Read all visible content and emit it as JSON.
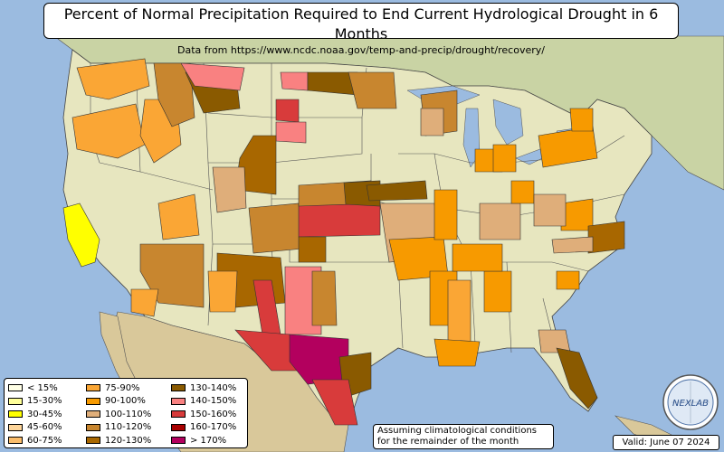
{
  "header": {
    "title": "Percent of Normal Precipitation Required to End Current Hydrological Drought in 6 Months",
    "subtitle": "Data from https://www.ncdc.noaa.gov/temp-and-precip/drought/recovery/"
  },
  "legend": {
    "items": [
      {
        "label": "< 15%",
        "color": "#ffffe6"
      },
      {
        "label": "15-30%",
        "color": "#ffff99"
      },
      {
        "label": "30-45%",
        "color": "#ffff00"
      },
      {
        "label": "45-60%",
        "color": "#fdd59a"
      },
      {
        "label": "60-75%",
        "color": "#fbbd6b"
      },
      {
        "label": "75-90%",
        "color": "#faa635"
      },
      {
        "label": "90-100%",
        "color": "#f79a00"
      },
      {
        "label": "100-110%",
        "color": "#dfae7a"
      },
      {
        "label": "110-120%",
        "color": "#c8862f"
      },
      {
        "label": "120-130%",
        "color": "#a86700"
      },
      {
        "label": "130-140%",
        "color": "#8a5a00"
      },
      {
        "label": "140-150%",
        "color": "#f98181"
      },
      {
        "label": "150-160%",
        "color": "#d83b3b"
      },
      {
        "label": "160-170%",
        "color": "#a80000"
      },
      {
        "label": "> 170%",
        "color": "#b3005e"
      }
    ]
  },
  "note": {
    "line1": "Assuming climatological conditions",
    "line2": "for the remainder of the month"
  },
  "valid_label": "Valid: June 07 2024",
  "logo": {
    "text": "NEXLAB"
  }
}
